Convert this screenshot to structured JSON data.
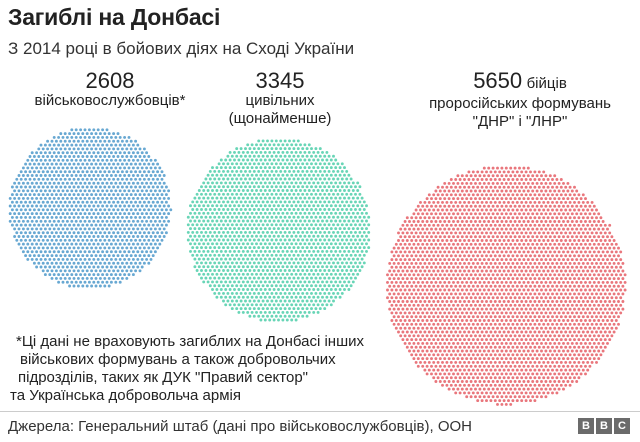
{
  "header": {
    "title": "Загиблі на Донбасі",
    "subtitle": "З 2014 році в бойових діях на Сході України"
  },
  "labels": [
    {
      "number": "2608",
      "lines": [
        "військовослужбовців*"
      ]
    },
    {
      "number": "3345",
      "lines": [
        "цивільних",
        "(щонайменше)"
      ]
    },
    {
      "number": "5650",
      "suffix": "бійців",
      "lines": [
        "проросійських формувань",
        "\"ДНР\" і \"ЛНР\""
      ]
    }
  ],
  "footnote": [
    "*Ці дані не враховують загиблих на Донбасі інших",
    "військових формувань а також добровольчих",
    "підрозділів, таких як ДУК \"Правий сектор\"",
    "та Українська добровольча армія"
  ],
  "source": "Джерела: Генеральний штаб (дані про військовослужбовців), ООН",
  "logo": [
    "B",
    "B",
    "C"
  ],
  "chart_data": {
    "type": "proportional-dot-circles",
    "categories": [
      "військовослужбовців*",
      "цивільних (щонайменше)",
      "бійців проросійських формувань \"ДНР\" і \"ЛНР\""
    ],
    "values": [
      2608,
      3345,
      5650
    ],
    "colors": [
      "#2e86c1",
      "#2ec59a",
      "#e0414a"
    ],
    "dot_opacity": 0.72
  }
}
